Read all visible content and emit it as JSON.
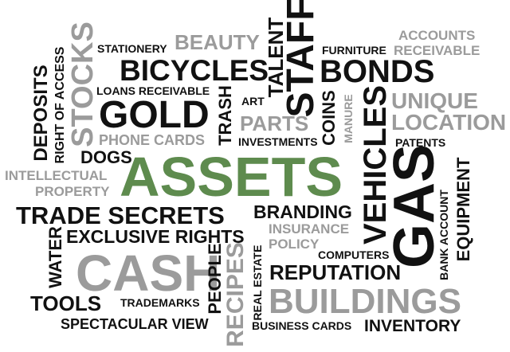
{
  "colors": {
    "dark": "#111111",
    "gray": "#9b9b9b",
    "accent": "#5e8b4e",
    "background": "#ffffff"
  },
  "words": {
    "assets": "ASSETS",
    "cash": "CASH",
    "buildings": "BUILDINGS",
    "gold": "GOLD",
    "bicycles": "BICYCLES",
    "bonds": "BONDS",
    "staff": "STAFF",
    "gas": "GAS",
    "vehicles": "VEHICLES",
    "stocks": "STOCKS",
    "trade_secrets": "TRADE SECRETS",
    "exclusive_rights": "EXCLUSIVE RIGHTS",
    "reputation": "REPUTATION",
    "inventory": "INVENTORY",
    "tools": "TOOLS",
    "spectacular_view": "SPECTACULAR VIEW",
    "unique": "UNIQUE",
    "location": "LOCATION",
    "beauty": "BEAUTY",
    "accounts": "ACCOUNTS",
    "receivable": "RECEIVABLE",
    "stationery": "STATIONERY",
    "furniture": "FURNITURE",
    "loans_receivable": "LOANS RECEIVABLE",
    "art": "ART",
    "talent": "TALENT",
    "parts": "PARTS",
    "coins": "COINS",
    "manure": "MANURE",
    "phone_cards": "PHONE CARDS",
    "trash": "TRASH",
    "investments": "INVESTMENTS",
    "patents": "PATENTS",
    "dogs": "DOGS",
    "intellectual": "INTELLECTUAL",
    "property": "PROPERTY",
    "deposits": "DEPOSITS",
    "right_of_access": "RIGHT OF ACCESS",
    "branding": "BRANDING",
    "insurance": "INSURANCE",
    "policy": "POLICY",
    "computers": "COMPUTERS",
    "water": "WATER",
    "people": "PEOPLE",
    "recipes": "RECIPES",
    "real_estate": "REAL ESTATE",
    "trademarks": "TRADEMARKS",
    "business_cards": "BUSINESS CARDS",
    "bank_account": "BANK ACCOUNT",
    "equipment": "EQUIPMENT"
  }
}
